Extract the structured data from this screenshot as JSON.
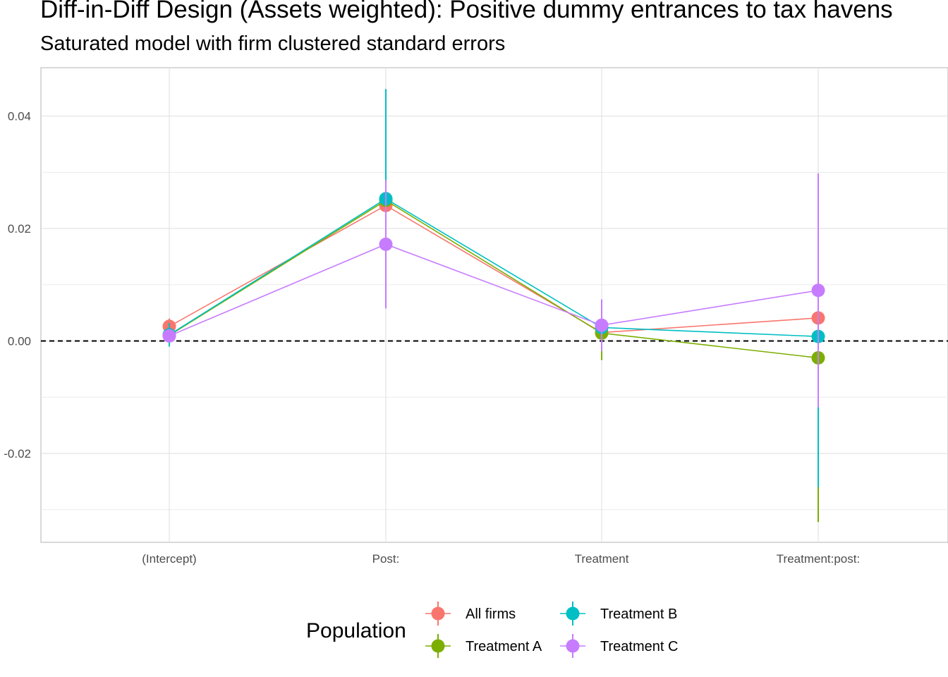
{
  "title": "Diff-in-Diff Design (Assets weighted): Positive dummy entrances to tax havens",
  "subtitle": "Saturated model with firm clustered standard errors",
  "chart_data": {
    "type": "line",
    "title": "Diff-in-Diff Design (Assets weighted): Positive dummy entrances to tax havens",
    "subtitle": "Saturated model with firm clustered standard errors",
    "xlabel": "",
    "ylabel": "",
    "categories": [
      "(Intercept)",
      "Post:",
      "Treatment",
      "Treatment:post:"
    ],
    "y_ticks": [
      -0.02,
      0.0,
      0.02,
      0.04
    ],
    "y_tick_labels": [
      "-0.02",
      "0.00",
      "0.02",
      "0.04"
    ],
    "ylim": [
      -0.0358,
      0.0486
    ],
    "grid": true,
    "reference_line": {
      "y": 0,
      "style": "dashed"
    },
    "legend": {
      "title": "Population",
      "position": "bottom"
    },
    "series": [
      {
        "name": "All firms",
        "color": "#F8766D",
        "values": [
          0.0026,
          0.0241,
          0.0015,
          0.0041
        ],
        "lower": [
          0.0012,
          0.017,
          -0.002,
          -0.009
        ],
        "upper": [
          0.004,
          0.0312,
          0.005,
          0.0172
        ]
      },
      {
        "name": "Treatment A",
        "color": "#7CAE00",
        "values": [
          0.001,
          0.025,
          0.0014,
          -0.003
        ],
        "lower": [
          -0.0005,
          0.007,
          -0.0034,
          -0.0322
        ],
        "upper": [
          0.0025,
          0.043,
          0.0062,
          0.0262
        ]
      },
      {
        "name": "Treatment B",
        "color": "#00BFC4",
        "values": [
          0.0011,
          0.0253,
          0.0024,
          0.0008
        ],
        "lower": [
          -0.001,
          0.0058,
          -0.001,
          -0.026
        ],
        "upper": [
          0.0032,
          0.0448,
          0.0058,
          0.0276
        ]
      },
      {
        "name": "Treatment C",
        "color": "#C77CFF",
        "values": [
          0.0009,
          0.0172,
          0.0028,
          0.009
        ],
        "lower": [
          -0.0003,
          0.0058,
          -0.0018,
          -0.0118
        ],
        "upper": [
          0.0021,
          0.0286,
          0.0074,
          0.0298
        ]
      }
    ]
  }
}
